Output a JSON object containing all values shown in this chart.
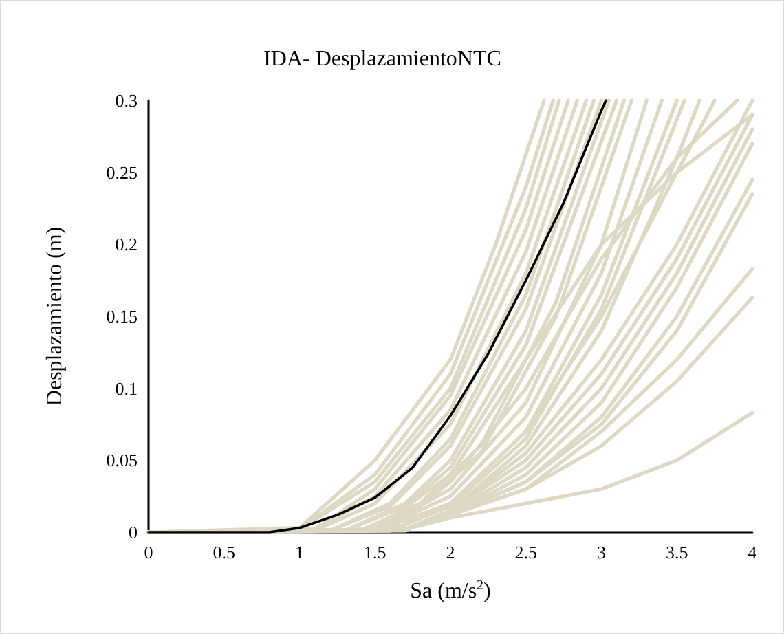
{
  "chart_data": {
    "type": "line",
    "title": "IDA- DesplazamientoNTC",
    "xlabel": "Sa (m/s$^{2}$)",
    "ylabel": "Desplazamiento (m)",
    "xlim": [
      0,
      4
    ],
    "xticks": [
      0,
      0.5,
      1,
      1.5,
      2,
      2.5,
      3,
      3.5,
      4
    ],
    "ylim": [
      0,
      0.3
    ],
    "yticks": [
      0,
      0.05,
      0.1,
      0.15,
      0.2,
      0.25,
      0.3
    ],
    "grid": false,
    "marker": "none",
    "line_style": "solid",
    "series": [
      {
        "color": "#ddd8c4",
        "x": [
          0,
          1,
          1.5,
          2,
          2.3,
          2.62
        ],
        "values": [
          0,
          0.003,
          0.05,
          0.12,
          0.2,
          0.3
        ]
      },
      {
        "color": "#ddd8c4",
        "x": [
          0,
          1,
          1.5,
          2,
          2.5,
          2.68
        ],
        "values": [
          0,
          0.002,
          0.04,
          0.11,
          0.24,
          0.3
        ]
      },
      {
        "color": "#ddd8c4",
        "x": [
          0,
          1,
          1.5,
          2,
          2.5,
          2.72
        ],
        "values": [
          0,
          0.002,
          0.035,
          0.1,
          0.225,
          0.3
        ]
      },
      {
        "color": "#ddd8c4",
        "x": [
          0,
          1.1,
          1.5,
          2,
          2.5,
          2.78
        ],
        "values": [
          0,
          0.002,
          0.03,
          0.095,
          0.21,
          0.3
        ]
      },
      {
        "color": "#ddd8c4",
        "x": [
          0,
          1.1,
          1.5,
          2,
          2.5,
          2.84
        ],
        "values": [
          0,
          0.002,
          0.025,
          0.085,
          0.195,
          0.3
        ]
      },
      {
        "color": "#ddd8c4",
        "x": [
          0,
          1.1,
          1.5,
          2,
          2.5,
          2.9
        ],
        "values": [
          0,
          0.001,
          0.02,
          0.075,
          0.18,
          0.3
        ]
      },
      {
        "color": "#ddd8c4",
        "x": [
          0,
          1.2,
          1.6,
          2,
          2.5,
          2.95
        ],
        "values": [
          0,
          0.001,
          0.02,
          0.065,
          0.165,
          0.3
        ]
      },
      {
        "color": "#ddd8c4",
        "x": [
          0,
          1.2,
          1.6,
          2,
          2.5,
          3.0
        ],
        "values": [
          0,
          0.001,
          0.018,
          0.06,
          0.155,
          0.3
        ]
      },
      {
        "color": "#ddd8c4",
        "x": [
          0,
          1.3,
          1.7,
          2,
          2.5,
          3.05
        ],
        "values": [
          0,
          0.001,
          0.02,
          0.05,
          0.14,
          0.3
        ]
      },
      {
        "color": "#ddd8c4",
        "x": [
          0,
          1.3,
          1.7,
          2,
          2.5,
          3.1
        ],
        "values": [
          0,
          0.001,
          0.018,
          0.045,
          0.13,
          0.3
        ]
      },
      {
        "color": "#ddd8c4",
        "x": [
          0,
          1.4,
          1.8,
          2.2,
          2.7,
          3.15
        ],
        "values": [
          0,
          0.001,
          0.02,
          0.06,
          0.16,
          0.3
        ]
      },
      {
        "color": "#ddd8c4",
        "x": [
          0,
          1.4,
          1.8,
          2.2,
          2.7,
          3.2
        ],
        "values": [
          0,
          0.001,
          0.018,
          0.055,
          0.15,
          0.3
        ]
      },
      {
        "color": "#ddd8c4",
        "x": [
          0,
          1.5,
          2,
          2.5,
          3,
          3.3
        ],
        "values": [
          0,
          0.001,
          0.03,
          0.09,
          0.2,
          0.3
        ]
      },
      {
        "color": "#ddd8c4",
        "x": [
          0,
          1.5,
          2,
          2.5,
          3,
          3.4
        ],
        "values": [
          0,
          0.001,
          0.025,
          0.08,
          0.18,
          0.3
        ]
      },
      {
        "color": "#ddd8c4",
        "x": [
          0,
          1.6,
          2,
          2.5,
          3,
          3.5
        ],
        "values": [
          0,
          0.001,
          0.02,
          0.07,
          0.165,
          0.3
        ]
      },
      {
        "color": "#ddd8c4",
        "x": [
          0,
          1.6,
          2,
          2.5,
          3,
          3.55
        ],
        "values": [
          0,
          0.001,
          0.018,
          0.065,
          0.155,
          0.3
        ]
      },
      {
        "color": "#ddd8c4",
        "x": [
          0,
          1.7,
          2,
          2.5,
          3,
          3.5,
          3.65
        ],
        "values": [
          0,
          0.001,
          0.015,
          0.06,
          0.14,
          0.26,
          0.3
        ]
      },
      {
        "color": "#ddd8c4",
        "x": [
          0,
          1.5,
          2,
          2.5,
          3,
          3.5,
          4
        ],
        "values": [
          0,
          0.002,
          0.04,
          0.12,
          0.2,
          0.25,
          0.29
        ]
      },
      {
        "color": "#ddd8c4",
        "x": [
          0,
          1.6,
          2,
          2.5,
          3,
          3.5,
          3.9
        ],
        "values": [
          0,
          0.002,
          0.035,
          0.1,
          0.19,
          0.26,
          0.3
        ]
      },
      {
        "color": "#ddd8c4",
        "x": [
          0,
          1.5,
          2,
          2.5,
          3,
          3.5,
          3.75
        ],
        "values": [
          0,
          0.001,
          0.02,
          0.07,
          0.15,
          0.25,
          0.3
        ]
      },
      {
        "color": "#ddd8c4",
        "x": [
          0,
          1.7,
          2,
          2.5,
          3,
          3.5,
          4
        ],
        "values": [
          0,
          0.002,
          0.015,
          0.055,
          0.12,
          0.2,
          0.3
        ]
      },
      {
        "color": "#ddd8c4",
        "x": [
          0,
          1.7,
          2,
          2.5,
          3,
          3.5,
          4
        ],
        "values": [
          0,
          0.002,
          0.015,
          0.05,
          0.11,
          0.19,
          0.29
        ]
      },
      {
        "color": "#ddd8c4",
        "x": [
          0,
          1.7,
          2,
          2.5,
          3,
          3.5,
          4
        ],
        "values": [
          0,
          0.002,
          0.013,
          0.045,
          0.1,
          0.18,
          0.28
        ]
      },
      {
        "color": "#ddd8c4",
        "x": [
          0,
          1.7,
          2,
          2.5,
          3,
          3.5,
          4
        ],
        "values": [
          0,
          0.002,
          0.012,
          0.04,
          0.09,
          0.17,
          0.27
        ]
      },
      {
        "color": "#ddd8c4",
        "x": [
          0,
          1.7,
          2,
          2.5,
          3,
          3.5,
          4
        ],
        "values": [
          0,
          0.002,
          0.012,
          0.035,
          0.08,
          0.15,
          0.245
        ]
      },
      {
        "color": "#ddd8c4",
        "x": [
          0,
          1.7,
          2,
          2.5,
          3,
          3.5,
          4
        ],
        "values": [
          0,
          0.002,
          0.012,
          0.035,
          0.075,
          0.14,
          0.235
        ]
      },
      {
        "color": "#ddd8c4",
        "x": [
          0,
          1.7,
          2,
          2.5,
          3,
          3.5,
          4
        ],
        "values": [
          0,
          0.002,
          0.012,
          0.03,
          0.07,
          0.12,
          0.183
        ]
      },
      {
        "color": "#ddd8c4",
        "x": [
          0,
          1.7,
          2,
          2.5,
          3,
          3.5,
          4
        ],
        "values": [
          0,
          0.002,
          0.012,
          0.03,
          0.06,
          0.105,
          0.163
        ]
      },
      {
        "color": "#ddd8c4",
        "x": [
          0,
          1.7,
          2,
          2.5,
          3,
          3.5,
          4
        ],
        "values": [
          0,
          0.002,
          0.01,
          0.02,
          0.03,
          0.05,
          0.083
        ]
      },
      {
        "color": "#000000",
        "x": [
          0,
          0.3,
          0.8,
          1,
          1.25,
          1.5,
          1.75,
          2,
          2.25,
          2.5,
          2.75,
          3,
          3.03
        ],
        "values": [
          0,
          0,
          0,
          0.003,
          0.012,
          0.024,
          0.045,
          0.081,
          0.124,
          0.175,
          0.229,
          0.293,
          0.3
        ]
      }
    ]
  }
}
